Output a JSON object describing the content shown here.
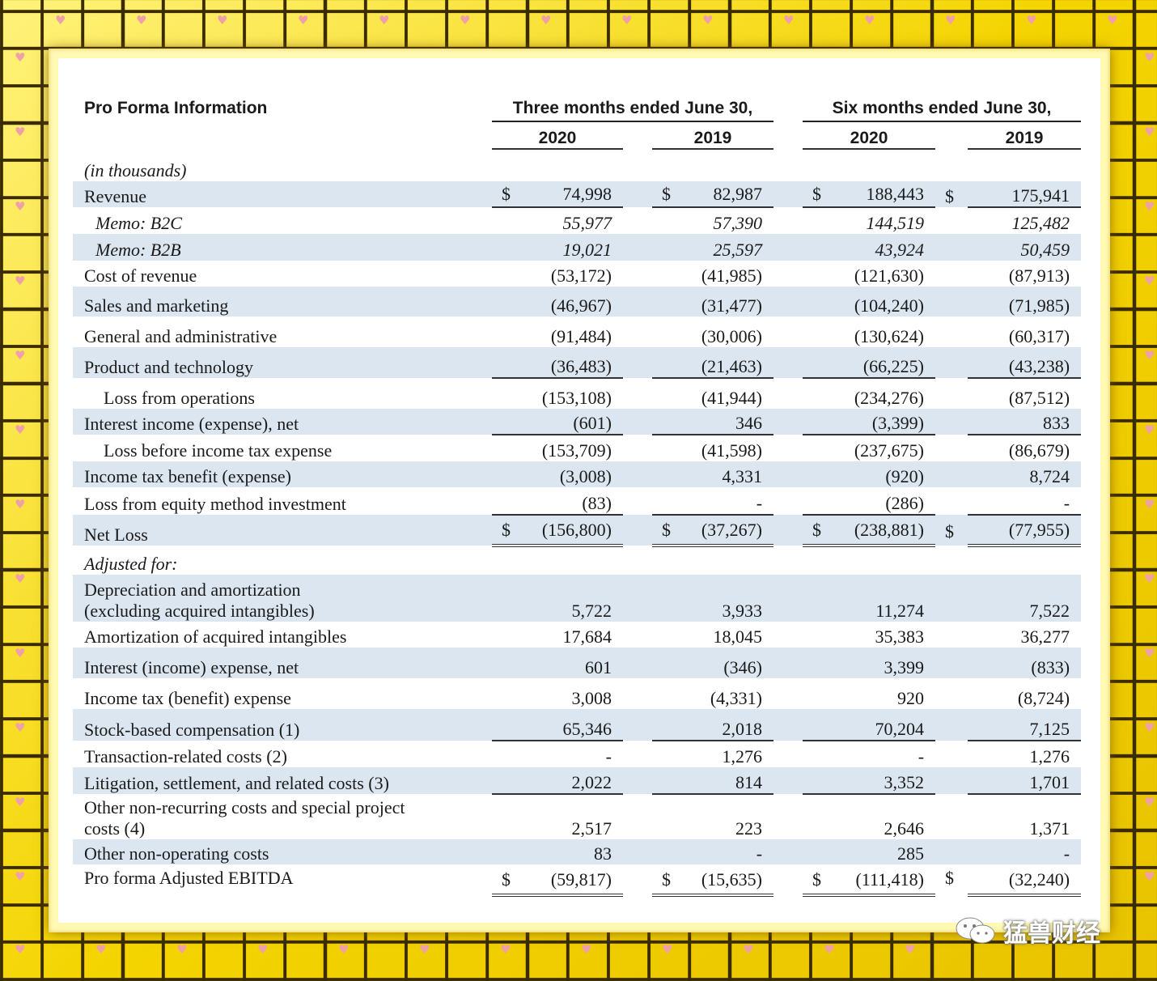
{
  "header": {
    "title": "Pro Forma Information",
    "group1": "Three months ended June 30,",
    "group2": "Six months ended June 30,",
    "years": [
      "2020",
      "2019",
      "2020",
      "2019"
    ],
    "unit_note": "(in thousands)"
  },
  "currency": "$",
  "dash": "-",
  "rows": [
    {
      "label": "Revenue",
      "v": [
        "74,998",
        "82,987",
        "188,443",
        "175,941"
      ]
    },
    {
      "label": "Memo: B2C",
      "v": [
        "55,977",
        "57,390",
        "144,519",
        "125,482"
      ]
    },
    {
      "label": "Memo: B2B",
      "v": [
        "19,021",
        "25,597",
        "43,924",
        "50,459"
      ]
    },
    {
      "label": "Cost of revenue",
      "v": [
        "(53,172)",
        "(41,985)",
        "(121,630)",
        "(87,913)"
      ]
    },
    {
      "label": "Sales and marketing",
      "v": [
        "(46,967)",
        "(31,477)",
        "(104,240)",
        "(71,985)"
      ]
    },
    {
      "label": "General and administrative",
      "v": [
        "(91,484)",
        "(30,006)",
        "(130,624)",
        "(60,317)"
      ]
    },
    {
      "label": "Product and technology",
      "v": [
        "(36,483)",
        "(21,463)",
        "(66,225)",
        "(43,238)"
      ]
    },
    {
      "label": "Loss from operations",
      "v": [
        "(153,108)",
        "(41,944)",
        "(234,276)",
        "(87,512)"
      ]
    },
    {
      "label": "Interest income (expense), net",
      "v": [
        "(601)",
        "346",
        "(3,399)",
        "833"
      ]
    },
    {
      "label": "Loss before income tax expense",
      "v": [
        "(153,709)",
        "(41,598)",
        "(237,675)",
        "(86,679)"
      ]
    },
    {
      "label": "Income tax benefit (expense)",
      "v": [
        "(3,008)",
        "4,331",
        "(920)",
        "8,724"
      ]
    },
    {
      "label": "Loss from equity method investment",
      "v": [
        "(83)",
        "-",
        "(286)",
        "-"
      ]
    },
    {
      "label": "Net Loss",
      "v": [
        "(156,800)",
        "(37,267)",
        "(238,881)",
        "(77,955)"
      ]
    },
    {
      "label": "Adjusted for:"
    },
    {
      "label1": "Depreciation and amortization",
      "label2": "(excluding acquired intangibles)",
      "v": [
        "5,722",
        "3,933",
        "11,274",
        "7,522"
      ]
    },
    {
      "label": "Amortization of acquired intangibles",
      "v": [
        "17,684",
        "18,045",
        "35,383",
        "36,277"
      ]
    },
    {
      "label": "Interest (income) expense, net",
      "v": [
        "601",
        "(346)",
        "3,399",
        "(833)"
      ]
    },
    {
      "label": "Income tax (benefit) expense",
      "v": [
        "3,008",
        "(4,331)",
        "920",
        "(8,724)"
      ]
    },
    {
      "label": "Stock-based compensation (1)",
      "v": [
        "65,346",
        "2,018",
        "70,204",
        "7,125"
      ]
    },
    {
      "label": "Transaction-related costs (2)",
      "v": [
        "-",
        "1,276",
        "-",
        "1,276"
      ]
    },
    {
      "label": "Litigation, settlement, and related costs (3)",
      "v": [
        "2,022",
        "814",
        "3,352",
        "1,701"
      ]
    },
    {
      "label1": "Other non-recurring costs and special project",
      "label2": "costs (4)",
      "v": [
        "2,517",
        "223",
        "2,646",
        "1,371"
      ]
    },
    {
      "label": "Other non-operating costs",
      "v": [
        "83",
        "-",
        "285",
        "-"
      ]
    },
    {
      "label": "Pro forma Adjusted EBITDA",
      "v": [
        "(59,817)",
        "(15,635)",
        "(111,418)",
        "(32,240)"
      ]
    }
  ],
  "watermark": {
    "text": "猛兽财经",
    "icon": "wechat-icon"
  }
}
